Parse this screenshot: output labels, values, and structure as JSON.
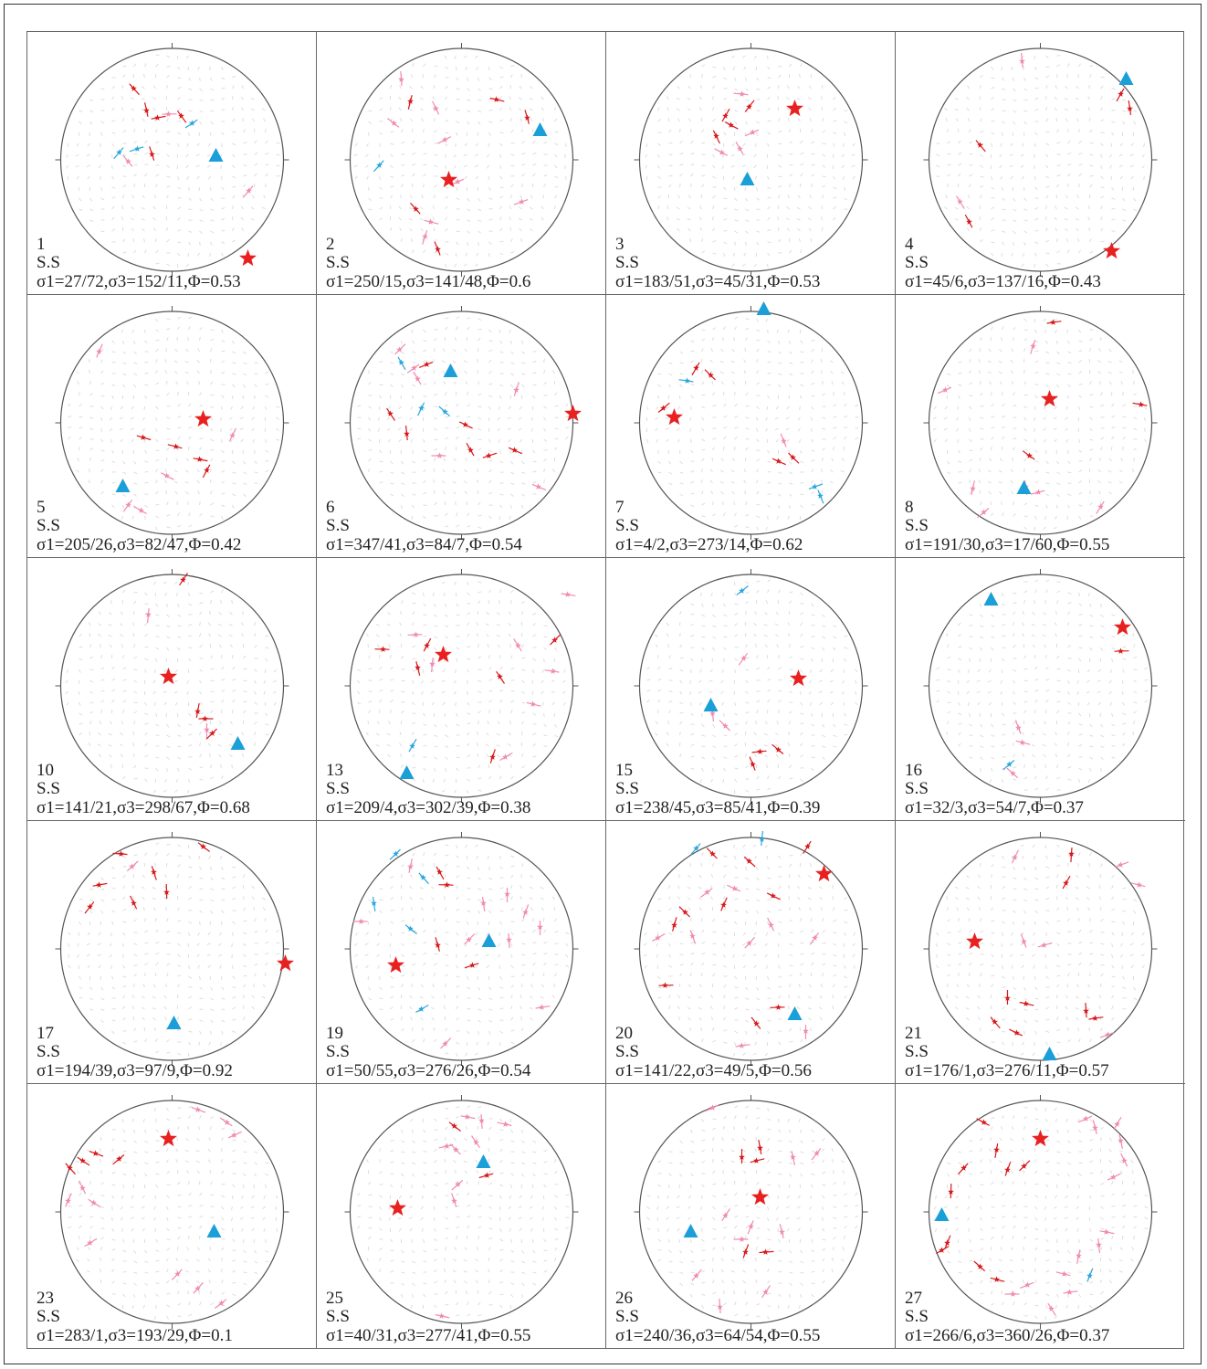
{
  "colors": {
    "sigma1_star": "#e82020",
    "sigma3_triangle": "#1a9fd8",
    "red_marker": "#d7191c",
    "pink_marker": "#f08cb0",
    "purple_marker": "#8e44ad",
    "blue_marker": "#2aa6dd",
    "net_outline": "#555555",
    "field_vectors": "#dddddd"
  },
  "legend_symbols": {
    "sigma1": "red-star-icon",
    "sigma3": "blue-triangle-icon"
  },
  "panels": [
    {
      "num": "1",
      "type": "S.S",
      "params": "σ1=27/72,σ3=152/11,Φ=0.53"
    },
    {
      "num": "2",
      "type": "S.S",
      "params": "σ1=250/15,σ3=141/48,Φ=0.6"
    },
    {
      "num": "3",
      "type": "S.S",
      "params": "σ1=183/51,σ3=45/31,Φ=0.53"
    },
    {
      "num": "4",
      "type": "S.S",
      "params": "σ1=45/6,σ3=137/16,Φ=0.43"
    },
    {
      "num": "5",
      "type": "S.S",
      "params": "σ1=205/26,σ3=82/47,Φ=0.42"
    },
    {
      "num": "6",
      "type": "S.S",
      "params": "σ1=347/41,σ3=84/7,Φ=0.54"
    },
    {
      "num": "7",
      "type": "S.S",
      "params": "σ1=4/2,σ3=273/14,Φ=0.62"
    },
    {
      "num": "8",
      "type": "S.S",
      "params": "σ1=191/30,σ3=17/60,Φ=0.55"
    },
    {
      "num": "10",
      "type": "S.S",
      "params": "σ1=141/21,σ3=298/67,Φ=0.68"
    },
    {
      "num": "13",
      "type": "S.S",
      "params": "σ1=209/4,σ3=302/39,Φ=0.38"
    },
    {
      "num": "15",
      "type": "S.S",
      "params": "σ1=238/45,σ3=85/41,Φ=0.39"
    },
    {
      "num": "16",
      "type": "S.S",
      "params": "σ1=32/3,σ3=54/7,Φ=0.37"
    },
    {
      "num": "17",
      "type": "S.S",
      "params": "σ1=194/39,σ3=97/9,Φ=0.92"
    },
    {
      "num": "19",
      "type": "S.S",
      "params": "σ1=50/55,σ3=276/26,Φ=0.54"
    },
    {
      "num": "20",
      "type": "S.S",
      "params": "σ1=141/22,σ3=49/5,Φ=0.56"
    },
    {
      "num": "21",
      "type": "S.S",
      "params": "σ1=176/1,σ3=276/11,Φ=0.57"
    },
    {
      "num": "23",
      "type": "S.S",
      "params": "σ1=283/1,σ3=193/29,Φ=0.1"
    },
    {
      "num": "25",
      "type": "S.S",
      "params": "σ1=40/31,σ3=277/41,Φ=0.55"
    },
    {
      "num": "26",
      "type": "S.S",
      "params": "σ1=240/36,σ3=64/54,Φ=0.55"
    },
    {
      "num": "27",
      "type": "S.S",
      "params": "σ1=266/6,σ3=360/26,Φ=0.37"
    }
  ]
}
